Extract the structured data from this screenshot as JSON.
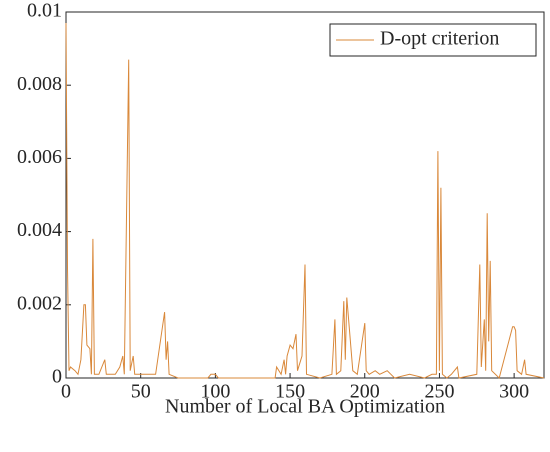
{
  "chart_data": {
    "type": "line",
    "xlabel": "Number of Local BA Optimization",
    "x": [
      0,
      1,
      2,
      3,
      6,
      8,
      10,
      12,
      13,
      14,
      16,
      17,
      18,
      19,
      22,
      26,
      27,
      33,
      36,
      38,
      39,
      42,
      43,
      45,
      46,
      60,
      66,
      67,
      68,
      69,
      75,
      95,
      97,
      100,
      102,
      140,
      141,
      144,
      146,
      147,
      148,
      150,
      152,
      154,
      155,
      158,
      160,
      161,
      170,
      178,
      180,
      181,
      184,
      186,
      187,
      188,
      190,
      192,
      195,
      200,
      201,
      203,
      207,
      210,
      215,
      220,
      230,
      240,
      245,
      248,
      249,
      250,
      251,
      252,
      255,
      258,
      262,
      263,
      275,
      277,
      278,
      280,
      281,
      282,
      283,
      284,
      285,
      290,
      299,
      300,
      301,
      302,
      305,
      307,
      308,
      320
    ],
    "series": [
      {
        "name": "D-opt criterion",
        "color": "#d9883a",
        "values": [
          0.0097,
          0.003,
          0.0002,
          0.0003,
          0.0002,
          0.0001,
          0.0005,
          0.002,
          0.002,
          0.0009,
          0.0008,
          0.0001,
          0.0038,
          0.0001,
          0.0001,
          0.0005,
          0.0001,
          0.0001,
          0.0003,
          0.0006,
          0.0001,
          0.0087,
          0.0002,
          0.0006,
          0.0001,
          0.0001,
          0.0018,
          0.0005,
          0.001,
          0.0001,
          0,
          0,
          0.0001,
          0.0001,
          0,
          0,
          0.0003,
          0.0001,
          0.0005,
          0.0001,
          0.0006,
          0.0009,
          0.0008,
          0.0012,
          0.0002,
          0.0006,
          0.0031,
          0.0001,
          0,
          0.0001,
          0.0016,
          0.0001,
          0.0002,
          0.0021,
          0.0005,
          0.0022,
          0.0012,
          0.0002,
          0.0001,
          0.0015,
          0.0002,
          0.0001,
          0.0002,
          0.0001,
          0.0002,
          0,
          0.0001,
          0,
          0.0001,
          0.0001,
          0.0062,
          0.0002,
          0.0052,
          0.0001,
          0,
          0.0001,
          0.0003,
          0,
          0.0001,
          0.0031,
          0.0003,
          0.0016,
          0.0002,
          0.0045,
          0.001,
          0.0032,
          0.0002,
          0,
          0.0014,
          0.0014,
          0.0013,
          0.0002,
          0.0001,
          0.0005,
          0.0001,
          0
        ]
      }
    ],
    "xlim": [
      0,
      320
    ],
    "xticks": [
      0,
      50,
      100,
      150,
      200,
      250,
      300
    ],
    "ylim": [
      0,
      0.01
    ],
    "yticks": [
      0,
      0.002,
      0.004,
      0.006,
      0.008,
      0.01
    ],
    "legend": "upper right"
  }
}
